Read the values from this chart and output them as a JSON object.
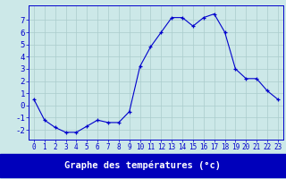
{
  "hours": [
    0,
    1,
    2,
    3,
    4,
    5,
    6,
    7,
    8,
    9,
    10,
    11,
    12,
    13,
    14,
    15,
    16,
    17,
    18,
    19,
    20,
    21,
    22,
    23
  ],
  "temps": [
    0.5,
    -1.2,
    -1.8,
    -2.2,
    -2.2,
    -1.7,
    -1.2,
    -1.4,
    -1.4,
    -0.5,
    3.2,
    4.8,
    6.0,
    7.2,
    7.2,
    6.5,
    7.2,
    7.5,
    6.0,
    3.0,
    2.2,
    2.2,
    1.2,
    0.5
  ],
  "line_color": "#0000cc",
  "marker_color": "#0000cc",
  "bg_color": "#cce8e8",
  "grid_color": "#aacccc",
  "xlabel": "Graphe des températures (°c)",
  "xlabel_color": "#ffffff",
  "xlabel_bg": "#0000bb",
  "ylim": [
    -2.8,
    8.2
  ],
  "xlim": [
    -0.5,
    23.5
  ],
  "yticks": [
    -2,
    -1,
    0,
    1,
    2,
    3,
    4,
    5,
    6,
    7
  ],
  "xtick_labels": [
    "0",
    "1",
    "2",
    "3",
    "4",
    "5",
    "6",
    "7",
    "8",
    "9",
    "10",
    "11",
    "12",
    "13",
    "14",
    "15",
    "16",
    "17",
    "18",
    "19",
    "20",
    "21",
    "22",
    "23"
  ],
  "tick_color": "#0000cc",
  "tick_fontsize": 5.5,
  "ytick_fontsize": 6.5,
  "xlabel_fontsize": 7.5
}
